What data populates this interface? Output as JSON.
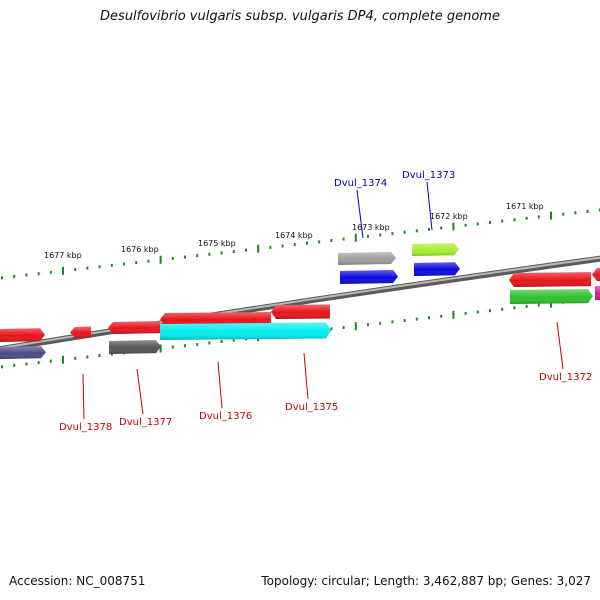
{
  "title": "Desulfovibrio vulgaris subsp. vulgaris DP4, complete genome",
  "footer": {
    "accession": "Accession: NC_008751",
    "topology": "Topology: circular; Length: 3,462,887 bp; Genes: 3,027"
  },
  "scale_labels": [
    "1677 kbp",
    "1676 kbp",
    "1675 kbp",
    "1674 kbp",
    "1673 kbp",
    "1672 kbp",
    "1671 kbp"
  ],
  "gene_labels": [
    {
      "text": "Dvul_1374",
      "color": "#0000cc"
    },
    {
      "text": "Dvul_1373",
      "color": "#0000cc"
    },
    {
      "text": "Dvul_1378",
      "color": "#cc0000"
    },
    {
      "text": "Dvul_1377",
      "color": "#cc0000"
    },
    {
      "text": "Dvul_1376",
      "color": "#cc0000"
    },
    {
      "text": "Dvul_1375",
      "color": "#cc0000"
    },
    {
      "text": "Dvul_1372",
      "color": "#cc0000"
    }
  ],
  "colors": {
    "backbone": "#8a8a8a",
    "tick": "#1a8a1a",
    "cds_red": "#e8141b",
    "cds_blue": "#0a0adc",
    "cds_gray": "#a0a0a0",
    "cds_lime": "#a6ee2e",
    "cds_green": "#30c030",
    "cds_navy": "#4a4a8a",
    "cds_darkgray": "#555555",
    "cds_cyan": "#00eeee",
    "cds_magenta": "#d020a0"
  }
}
